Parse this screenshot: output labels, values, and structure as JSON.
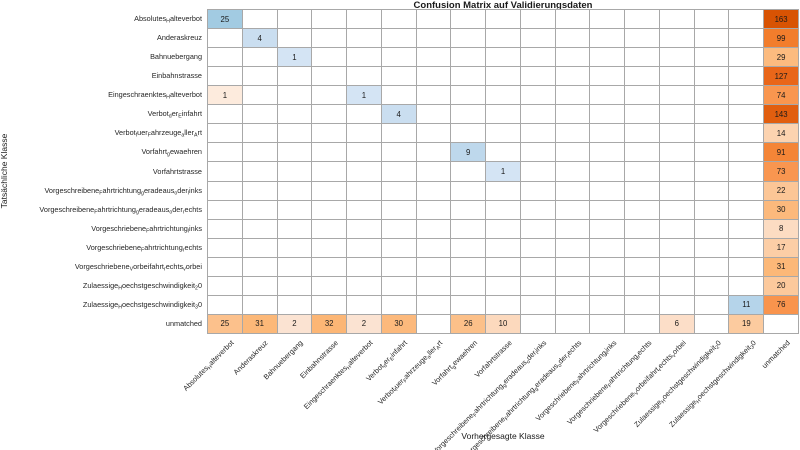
{
  "chart_data": {
    "type": "heatmap",
    "subtype": "confusion-matrix",
    "title": "Confusion Matrix auf Validierungsdaten",
    "xlabel": "Vorhergesagte Klasse",
    "ylabel": "Tatsächliche Klasse",
    "label_note": "underscore followed by a character renders as a subscript (matplotlib mathtext style)",
    "classes": [
      "Absolutes_Halteverbot",
      "Anderaskreuz",
      "Bahnuebergang",
      "Einbahnstrasse",
      "Eingeschraenktes_Halteverbot",
      "Verbot_der_Einfahrt",
      "Verbot_fuer_Fahrzeuge_aller_Art",
      "Vorfahrt_gewaehren",
      "Vorfahrtstrasse",
      "Vorgeschreibene_Fahrtrichtung_geradeaus_oder_links",
      "Vorgeschreibene_Fahrtrichtung_geradeaus_oder_rechts",
      "Vorgeschriebene_Fahrtrichtung_links",
      "Vorgeschriebene_Fahrtrichtung_rechts",
      "Vorgeschriebene_Vorbeifahrt_rechts_vorbei",
      "Zulaessige_Hoechstgeschwindigkeit_20",
      "Zulaessige_Hoechstgeschwindigkeit_30",
      "unmatched"
    ],
    "cells": [
      {
        "row": 1,
        "col": 1,
        "value": 25
      },
      {
        "row": 1,
        "col": 17,
        "value": 163
      },
      {
        "row": 2,
        "col": 2,
        "value": 4
      },
      {
        "row": 2,
        "col": 17,
        "value": 99
      },
      {
        "row": 3,
        "col": 3,
        "value": 1
      },
      {
        "row": 3,
        "col": 17,
        "value": 29
      },
      {
        "row": 4,
        "col": 17,
        "value": 127
      },
      {
        "row": 5,
        "col": 1,
        "value": 1
      },
      {
        "row": 5,
        "col": 5,
        "value": 1
      },
      {
        "row": 5,
        "col": 17,
        "value": 74
      },
      {
        "row": 6,
        "col": 6,
        "value": 4
      },
      {
        "row": 6,
        "col": 17,
        "value": 143
      },
      {
        "row": 7,
        "col": 17,
        "value": 14
      },
      {
        "row": 8,
        "col": 8,
        "value": 9
      },
      {
        "row": 8,
        "col": 17,
        "value": 91
      },
      {
        "row": 9,
        "col": 9,
        "value": 1
      },
      {
        "row": 9,
        "col": 17,
        "value": 73
      },
      {
        "row": 10,
        "col": 17,
        "value": 22
      },
      {
        "row": 11,
        "col": 17,
        "value": 30
      },
      {
        "row": 12,
        "col": 17,
        "value": 8
      },
      {
        "row": 13,
        "col": 17,
        "value": 17
      },
      {
        "row": 14,
        "col": 17,
        "value": 31
      },
      {
        "row": 15,
        "col": 17,
        "value": 20
      },
      {
        "row": 16,
        "col": 16,
        "value": 11
      },
      {
        "row": 16,
        "col": 17,
        "value": 76
      },
      {
        "row": 17,
        "col": 1,
        "value": 25
      },
      {
        "row": 17,
        "col": 2,
        "value": 31
      },
      {
        "row": 17,
        "col": 3,
        "value": 2
      },
      {
        "row": 17,
        "col": 4,
        "value": 32
      },
      {
        "row": 17,
        "col": 5,
        "value": 2
      },
      {
        "row": 17,
        "col": 6,
        "value": 30
      },
      {
        "row": 17,
        "col": 8,
        "value": 26
      },
      {
        "row": 17,
        "col": 9,
        "value": 10
      },
      {
        "row": 17,
        "col": 14,
        "value": 6
      },
      {
        "row": 17,
        "col": 16,
        "value": 19
      }
    ],
    "colors": {
      "diagonal_scale_blue_stops": [
        [
          0,
          "#ddeaf7"
        ],
        [
          1,
          "#d4e4f4"
        ],
        [
          4,
          "#cadef0"
        ],
        [
          9,
          "#bed8ec"
        ],
        [
          11,
          "#b5d4ea"
        ],
        [
          25,
          "#a2cbe2"
        ]
      ],
      "offdiagonal_scale_orange_stops": [
        [
          0,
          "#fff3e8"
        ],
        [
          2,
          "#fbe3d2"
        ],
        [
          10,
          "#fcd9bd"
        ],
        [
          20,
          "#fcc99c"
        ],
        [
          32,
          "#fcb675"
        ],
        [
          76,
          "#f9944d"
        ],
        [
          99,
          "#f27d2c"
        ],
        [
          127,
          "#e96619"
        ],
        [
          163,
          "#d85303"
        ]
      ],
      "grid_line": "#a8a8a8",
      "empty_cell": "#ffffff",
      "value_text": "#1a1a1a"
    },
    "layout_hints": {
      "rows": 17,
      "cols": 17,
      "grid_on": true,
      "x_tick_rotation_deg": 45
    }
  }
}
